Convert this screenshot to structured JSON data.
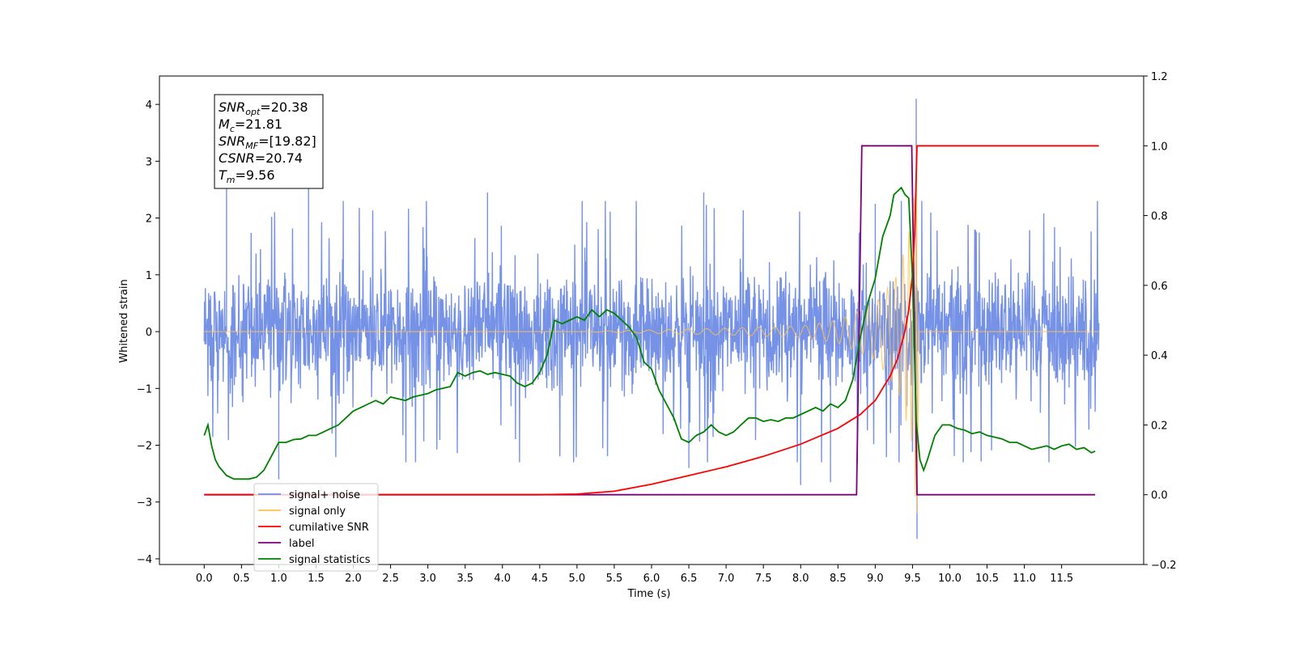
{
  "chart_data": {
    "type": "line",
    "xlabel": "Time (s)",
    "ylabel": "Whitened strain",
    "xlim": [
      -0.6,
      12.6
    ],
    "ylim": [
      -4.1,
      4.5
    ],
    "y2lim": [
      -0.2,
      1.2
    ],
    "x_ticks": [
      0.0,
      0.5,
      1.0,
      1.5,
      2.0,
      2.5,
      3.0,
      3.5,
      4.0,
      4.5,
      5.0,
      5.5,
      6.0,
      6.5,
      7.0,
      7.5,
      8.0,
      8.5,
      9.0,
      9.5,
      10.0,
      10.5,
      11.0,
      11.5
    ],
    "x_tick_labels": [
      "0.0",
      "0.5",
      "1.0",
      "1.5",
      "2.0",
      "2.5",
      "3.0",
      "3.5",
      "4.0",
      "4.5",
      "5.0",
      "5.5",
      "6.0",
      "6.5",
      "7.0",
      "7.5",
      "8.0",
      "8.5",
      "9.0",
      "9.5",
      "10.0",
      "10.5",
      "11.0",
      "11.5"
    ],
    "y_ticks": [
      -4,
      -3,
      -2,
      -1,
      0,
      1,
      2,
      3,
      4
    ],
    "y_tick_labels": [
      "−4",
      "−3",
      "−2",
      "−1",
      "0",
      "1",
      "2",
      "3",
      "4"
    ],
    "y2_ticks": [
      -0.2,
      0.0,
      0.2,
      0.4,
      0.6,
      0.8,
      1.0,
      1.2
    ],
    "y2_tick_labels": [
      "−0.2",
      "0.0",
      "0.2",
      "0.4",
      "0.6",
      "0.8",
      "1.0",
      "1.2"
    ],
    "grid": false,
    "legend_placement": "lower-left",
    "legend": [
      {
        "name": "signal+ noise",
        "color": "#6f8ce6"
      },
      {
        "name": "signal only",
        "color": "#ffc04d"
      },
      {
        "name": "cumilative SNR",
        "color": "#ff0000"
      },
      {
        "name": "label",
        "color": "#7b007b"
      },
      {
        "name": "signal statistics",
        "color": "#008000"
      }
    ],
    "annotation_box": [
      {
        "sym": "SNR",
        "sub": "opt",
        "val": "=20.38"
      },
      {
        "sym": "M",
        "sub": "c",
        "val": "=21.81"
      },
      {
        "sym": "SNR",
        "sub": "MF",
        "val": "=[19.82]"
      },
      {
        "sym": "CSNR",
        "sub": "",
        "val": "=20.74"
      },
      {
        "sym": "T",
        "sub": "m",
        "val": "=9.56"
      }
    ],
    "series": [
      {
        "name": "signal+ noise",
        "axis": "left",
        "color": "#6f8ce6",
        "kind": "noisy strain",
        "x_range": [
          0.0,
          12.0
        ],
        "typical_band": [
          -1.4,
          1.4
        ],
        "peaks": [
          {
            "x": 0.3,
            "y": 2.6
          },
          {
            "x": 1.4,
            "y": 2.55
          },
          {
            "x": 3.8,
            "y": 2.45
          },
          {
            "x": 6.7,
            "y": 2.45
          },
          {
            "x": 9.0,
            "y": 2.25
          },
          {
            "x": 9.55,
            "y": 4.1
          },
          {
            "x": 9.56,
            "y": -3.65
          },
          {
            "x": 8.0,
            "y": -2.7
          },
          {
            "x": 1.0,
            "y": -2.6
          },
          {
            "x": 8.4,
            "y": -2.65
          },
          {
            "x": 6.5,
            "y": -2.4
          }
        ]
      },
      {
        "name": "signal only",
        "axis": "left",
        "color": "#ffc04d",
        "kind": "chirp",
        "x_range": [
          0.0,
          12.0
        ],
        "merger_time": 9.56,
        "amplitude_at": [
          [
            5.0,
            0.0
          ],
          [
            6.0,
            0.03
          ],
          [
            7.0,
            0.06
          ],
          [
            8.0,
            0.1
          ],
          [
            8.5,
            0.2
          ],
          [
            9.0,
            0.5
          ],
          [
            9.3,
            1.0
          ],
          [
            9.5,
            2.0
          ],
          [
            9.55,
            3.2
          ]
        ]
      },
      {
        "name": "cumilative SNR",
        "axis": "right",
        "color": "#ff0000",
        "x": [
          0.0,
          4.5,
          5.0,
          5.5,
          6.0,
          6.5,
          7.0,
          7.5,
          8.0,
          8.5,
          8.8,
          9.0,
          9.2,
          9.3,
          9.4,
          9.45,
          9.5,
          9.53,
          9.56,
          12.0
        ],
        "values": [
          0.0,
          0.0,
          0.002,
          0.01,
          0.03,
          0.055,
          0.08,
          0.11,
          0.145,
          0.19,
          0.23,
          0.27,
          0.34,
          0.39,
          0.47,
          0.53,
          0.63,
          0.75,
          1.0,
          1.0
        ]
      },
      {
        "name": "label",
        "axis": "right",
        "color": "#7b007b",
        "x": [
          0.0,
          8.75,
          8.82,
          9.49,
          9.56,
          11.95
        ],
        "values": [
          0.0,
          0.0,
          1.0,
          1.0,
          0.0,
          0.0
        ]
      },
      {
        "name": "signal statistics",
        "axis": "right",
        "color": "#008000",
        "x": [
          0.0,
          0.05,
          0.1,
          0.15,
          0.2,
          0.3,
          0.4,
          0.5,
          0.6,
          0.7,
          0.8,
          0.9,
          1.0,
          1.1,
          1.2,
          1.3,
          1.4,
          1.5,
          1.6,
          1.7,
          1.8,
          1.9,
          2.0,
          2.1,
          2.2,
          2.3,
          2.4,
          2.5,
          2.6,
          2.7,
          2.8,
          2.9,
          3.0,
          3.1,
          3.2,
          3.3,
          3.4,
          3.5,
          3.6,
          3.7,
          3.8,
          3.9,
          4.0,
          4.1,
          4.2,
          4.3,
          4.4,
          4.5,
          4.6,
          4.7,
          4.8,
          4.9,
          5.0,
          5.1,
          5.2,
          5.3,
          5.4,
          5.5,
          5.6,
          5.7,
          5.8,
          5.9,
          6.0,
          6.1,
          6.2,
          6.3,
          6.4,
          6.5,
          6.6,
          6.7,
          6.8,
          6.9,
          7.0,
          7.1,
          7.2,
          7.3,
          7.4,
          7.5,
          7.6,
          7.7,
          7.8,
          7.9,
          8.0,
          8.1,
          8.2,
          8.3,
          8.4,
          8.5,
          8.6,
          8.7,
          8.8,
          8.9,
          9.0,
          9.1,
          9.2,
          9.25,
          9.3,
          9.35,
          9.4,
          9.45,
          9.5,
          9.55,
          9.6,
          9.65,
          9.7,
          9.8,
          9.9,
          10.0,
          10.1,
          10.2,
          10.3,
          10.4,
          10.5,
          10.6,
          10.7,
          10.8,
          10.9,
          11.0,
          11.1,
          11.2,
          11.3,
          11.4,
          11.5,
          11.6,
          11.7,
          11.8,
          11.9,
          11.95
        ],
        "values": [
          0.17,
          0.2,
          0.14,
          0.1,
          0.08,
          0.055,
          0.045,
          0.045,
          0.045,
          0.05,
          0.07,
          0.11,
          0.15,
          0.15,
          0.158,
          0.16,
          0.17,
          0.17,
          0.18,
          0.19,
          0.2,
          0.22,
          0.24,
          0.25,
          0.26,
          0.27,
          0.26,
          0.28,
          0.275,
          0.27,
          0.28,
          0.285,
          0.29,
          0.3,
          0.305,
          0.31,
          0.35,
          0.34,
          0.35,
          0.355,
          0.345,
          0.35,
          0.345,
          0.34,
          0.32,
          0.31,
          0.32,
          0.35,
          0.4,
          0.5,
          0.49,
          0.5,
          0.51,
          0.5,
          0.53,
          0.51,
          0.53,
          0.52,
          0.5,
          0.48,
          0.45,
          0.38,
          0.36,
          0.3,
          0.26,
          0.22,
          0.16,
          0.15,
          0.17,
          0.18,
          0.2,
          0.18,
          0.17,
          0.18,
          0.2,
          0.22,
          0.22,
          0.21,
          0.215,
          0.21,
          0.22,
          0.22,
          0.23,
          0.24,
          0.25,
          0.24,
          0.26,
          0.25,
          0.27,
          0.33,
          0.45,
          0.55,
          0.62,
          0.74,
          0.8,
          0.86,
          0.87,
          0.88,
          0.86,
          0.85,
          0.62,
          0.21,
          0.1,
          0.07,
          0.1,
          0.17,
          0.2,
          0.2,
          0.19,
          0.185,
          0.175,
          0.18,
          0.17,
          0.165,
          0.16,
          0.15,
          0.15,
          0.14,
          0.13,
          0.135,
          0.14,
          0.13,
          0.14,
          0.145,
          0.13,
          0.135,
          0.12,
          0.125
        ]
      }
    ]
  }
}
